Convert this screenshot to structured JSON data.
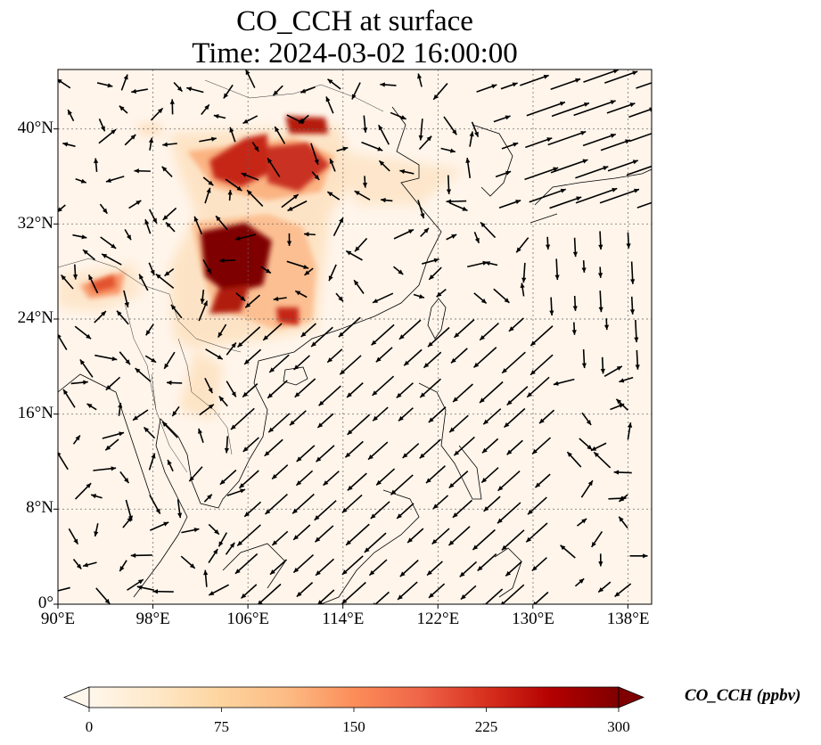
{
  "title": {
    "line1": "CO_CCH at surface",
    "line2": "Time: 2024-03-02 16:00:00"
  },
  "map": {
    "lon_range": [
      90,
      140
    ],
    "lat_range": [
      0,
      45
    ],
    "lon_ticks": [
      "90°E",
      "98°E",
      "106°E",
      "114°E",
      "122°E",
      "130°E",
      "138°E"
    ],
    "lon_tick_values": [
      90,
      98,
      106,
      114,
      122,
      130,
      138
    ],
    "lat_ticks": [
      "0°",
      "8°N",
      "16°N",
      "24°N",
      "32°N",
      "40°N"
    ],
    "lat_tick_values": [
      0,
      8,
      16,
      24,
      32,
      40
    ],
    "gridlines": true,
    "background_color": "#fff5eb"
  },
  "colorbar": {
    "label": "CO_CCH (ppbv)",
    "tick_labels": [
      "0",
      "75",
      "150",
      "225",
      "300"
    ],
    "tick_values": [
      0,
      75,
      150,
      225,
      300
    ],
    "range": [
      0,
      300
    ],
    "extend": "both",
    "colormap": "OrRd",
    "colors": [
      "#fff7ec",
      "#fee8c8",
      "#fdd49e",
      "#fdbb84",
      "#fc8d59",
      "#ef6548",
      "#d7301f",
      "#b30000",
      "#7f0000"
    ]
  },
  "wind_field": {
    "regions": [
      {
        "area": "South China Sea",
        "direction": "southwest-bound (NE monsoon)"
      },
      {
        "area": "East China Sea / Japan",
        "direction": "east-northeast-bound"
      },
      {
        "area": "Western Pacific",
        "direction": "south-bound"
      }
    ]
  },
  "concentration_regions": [
    {
      "area": "Sichuan Basin / Chongqing",
      "level": "above 300 ppbv"
    },
    {
      "area": "North China Plain",
      "level": "200-300 ppbv"
    },
    {
      "area": "Northeast India / Assam",
      "level": "about 150 ppbv"
    }
  ]
}
